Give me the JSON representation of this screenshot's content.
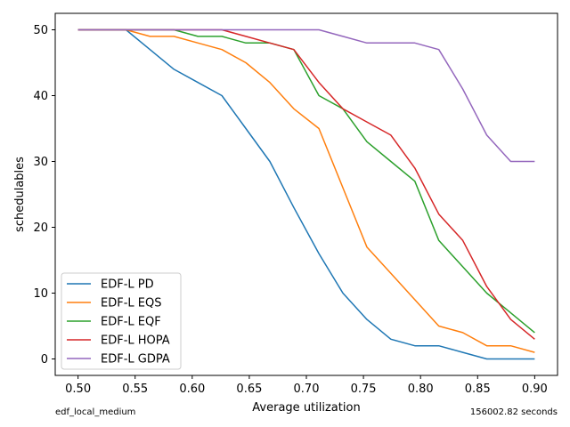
{
  "chart_data": {
    "type": "line",
    "xlabel": "Average utilization",
    "ylabel": "schedulables",
    "xlim": [
      0.48,
      0.92
    ],
    "ylim": [
      -2.5,
      52.5
    ],
    "xticks": [
      0.5,
      0.55,
      0.6,
      0.65,
      0.7,
      0.75,
      0.8,
      0.85,
      0.9
    ],
    "xtick_labels": [
      "0.50",
      "0.55",
      "0.60",
      "0.65",
      "0.70",
      "0.75",
      "0.80",
      "0.85",
      "0.90"
    ],
    "yticks": [
      0,
      10,
      20,
      30,
      40,
      50
    ],
    "ytick_labels": [
      "0",
      "10",
      "20",
      "30",
      "40",
      "50"
    ],
    "grid": false,
    "legend_position": "lower-left",
    "x": [
      0.5,
      0.521,
      0.542,
      0.563,
      0.584,
      0.605,
      0.626,
      0.647,
      0.668,
      0.689,
      0.711,
      0.732,
      0.753,
      0.774,
      0.795,
      0.816,
      0.837,
      0.858,
      0.879,
      0.9
    ],
    "series": [
      {
        "name": "EDF-L PD",
        "color": "#1f77b4",
        "values": [
          50,
          50,
          50,
          47,
          44,
          42,
          40,
          35,
          30,
          23,
          16,
          10,
          6,
          3,
          2,
          2,
          1,
          0,
          0,
          0
        ]
      },
      {
        "name": "EDF-L EQS",
        "color": "#ff7f0e",
        "values": [
          50,
          50,
          50,
          49,
          49,
          48,
          47,
          45,
          42,
          38,
          35,
          26,
          17,
          13,
          9,
          5,
          4,
          2,
          2,
          1
        ]
      },
      {
        "name": "EDF-L EQF",
        "color": "#2ca02c",
        "values": [
          50,
          50,
          50,
          50,
          50,
          49,
          49,
          48,
          48,
          47,
          40,
          38,
          33,
          30,
          27,
          18,
          14,
          10,
          7,
          4
        ]
      },
      {
        "name": "EDF-L HOPA",
        "color": "#d62728",
        "values": [
          50,
          50,
          50,
          50,
          50,
          50,
          50,
          49,
          48,
          47,
          42,
          38,
          36,
          34,
          29,
          22,
          18,
          11,
          6,
          3
        ]
      },
      {
        "name": "EDF-L GDPA",
        "color": "#9467bd",
        "values": [
          50,
          50,
          50,
          50,
          50,
          50,
          50,
          50,
          50,
          50,
          50,
          49,
          48,
          48,
          48,
          47,
          41,
          34,
          30,
          30
        ]
      }
    ]
  },
  "footer": {
    "left": "edf_local_medium",
    "right": "156002.82 seconds"
  }
}
